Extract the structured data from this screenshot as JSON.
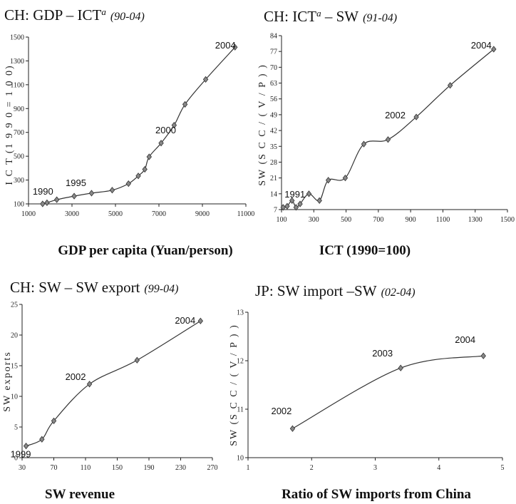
{
  "chart_data": [
    {
      "type": "line",
      "title": "CH: GDP – ICT",
      "title_sup": "a",
      "title_period": "(90-04)",
      "xlabel": "GDP per capita (Yuan/person)",
      "ylabel": "I C T  (1 9 9 0 = 1 0 0)",
      "xlim": [
        1000,
        11000
      ],
      "ylim": [
        100,
        1500
      ],
      "xticks": [
        1000,
        3000,
        5000,
        7000,
        9000,
        11000
      ],
      "xtick_labels": [
        "1000",
        "3000",
        "5000",
        "7000",
        "9000",
        "11000"
      ],
      "yticks": [
        100,
        300,
        500,
        700,
        900,
        1100,
        1300,
        1500
      ],
      "ytick_labels": [
        "100",
        "300",
        "500",
        "700",
        "900",
        "1100",
        "1300",
        "1500"
      ],
      "x": [
        1650,
        1850,
        2300,
        3100,
        3900,
        4850,
        5600,
        6050,
        6350,
        6550,
        7100,
        7700,
        8200,
        9150,
        10500
      ],
      "y": [
        100,
        110,
        135,
        165,
        190,
        215,
        270,
        335,
        390,
        495,
        610,
        760,
        935,
        1145,
        1415
      ],
      "annotations": [
        {
          "label": "1990",
          "x": 1650,
          "y": 100
        },
        {
          "label": "1995",
          "x": 3100,
          "y": 165
        },
        {
          "label": "2000",
          "x": 7100,
          "y": 610
        },
        {
          "label": "2004",
          "x": 10500,
          "y": 1415
        }
      ]
    },
    {
      "type": "line",
      "title": "CH: ICT",
      "title_sup": "a",
      "title_tail": " – SW",
      "title_period": "(91-04)",
      "xlabel": "ICT (1990=100)",
      "ylabel": "SW  (S C C / ( V / P ) )",
      "xlim": [
        100,
        1500
      ],
      "ylim": [
        7,
        84
      ],
      "xticks": [
        100,
        300,
        500,
        700,
        900,
        1100,
        1300,
        1500
      ],
      "xtick_labels": [
        "100",
        "300",
        "500",
        "700",
        "900",
        "1100",
        "1300",
        "1500"
      ],
      "yticks": [
        7,
        14,
        21,
        28,
        35,
        42,
        49,
        56,
        63,
        70,
        77,
        84
      ],
      "ytick_labels": [
        "7",
        "14",
        "21",
        "28",
        "35",
        "42",
        "49",
        "56",
        "63",
        "70",
        "77",
        "84"
      ],
      "x": [
        110,
        135,
        165,
        190,
        215,
        270,
        335,
        390,
        495,
        610,
        760,
        935,
        1145,
        1415
      ],
      "y": [
        8,
        8.5,
        11,
        8,
        9.5,
        14,
        11,
        20,
        21,
        36,
        38,
        48,
        62,
        78
      ],
      "annotations": [
        {
          "label": "1991",
          "x": 110,
          "y": 8
        },
        {
          "label": "2002",
          "x": 935,
          "y": 48
        },
        {
          "label": "2004",
          "x": 1415,
          "y": 78
        }
      ]
    },
    {
      "type": "line",
      "title": "CH: SW – SW export",
      "title_period": "(99-04)",
      "xlabel": "SW revenue",
      "ylabel": "SW exports",
      "xlim": [
        30,
        270
      ],
      "ylim": [
        0,
        25
      ],
      "xticks": [
        30,
        70,
        110,
        150,
        190,
        230,
        270
      ],
      "xtick_labels": [
        "30",
        "70",
        "110",
        "150",
        "190",
        "230",
        "270"
      ],
      "yticks": [
        0,
        5,
        10,
        15,
        20,
        25
      ],
      "ytick_labels": [
        "0",
        "5",
        "10",
        "15",
        "20",
        "25"
      ],
      "x": [
        35,
        55,
        70,
        115,
        175,
        255
      ],
      "y": [
        1.9,
        3.0,
        6.0,
        12.0,
        15.9,
        22.3
      ],
      "annotations": [
        {
          "label": "1999",
          "x": 35,
          "y": 1.9
        },
        {
          "label": "2002",
          "x": 115,
          "y": 12.0
        },
        {
          "label": "2004",
          "x": 255,
          "y": 22.3
        }
      ]
    },
    {
      "type": "line",
      "title": "JP: SW import –SW",
      "title_period": "(02-04)",
      "xlabel": "Ratio of SW imports from China",
      "ylabel": "SW  (S C C / ( V / P ) )",
      "xlim": [
        1,
        5
      ],
      "ylim": [
        10,
        13
      ],
      "xticks": [
        1,
        2,
        3,
        4,
        5
      ],
      "xtick_labels": [
        "1",
        "2",
        "3",
        "4",
        "5"
      ],
      "yticks": [
        10,
        11,
        12,
        13
      ],
      "ytick_labels": [
        "10",
        "11",
        "12",
        "13"
      ],
      "x": [
        1.7,
        3.4,
        4.7
      ],
      "y": [
        10.6,
        11.85,
        12.1
      ],
      "annotations": [
        {
          "label": "2002",
          "x": 1.7,
          "y": 10.6
        },
        {
          "label": "2003",
          "x": 3.4,
          "y": 11.85
        },
        {
          "label": "2004",
          "x": 4.7,
          "y": 12.1
        }
      ]
    }
  ]
}
